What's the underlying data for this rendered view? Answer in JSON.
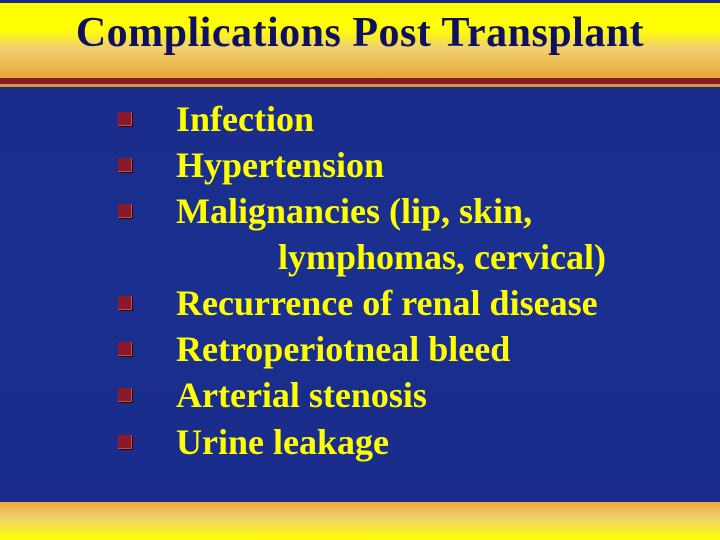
{
  "title": "Complications Post Transplant",
  "items": [
    {
      "text": "Infection"
    },
    {
      "text": "Hypertension"
    },
    {
      "text": "Malignancies (lip, skin,",
      "cont": "lymphomas, cervical)"
    },
    {
      "text": "Recurrence of renal disease"
    },
    {
      "text": "Retroperiotneal bleed"
    },
    {
      "text": "Arterial stenosis"
    },
    {
      "text": "Urine leakage"
    }
  ],
  "colors": {
    "title_bg_top": "#ffff00",
    "title_bg_bottom": "#e8a838",
    "slide_bg": "#1a2a8a",
    "text": "#ffff00",
    "title_text": "#101060",
    "bullet": "#8a1a2a",
    "rule_dark": "#8a1a2a",
    "rule_gold": "#d0a030"
  },
  "fontsize": {
    "title": 42,
    "body": 36
  }
}
